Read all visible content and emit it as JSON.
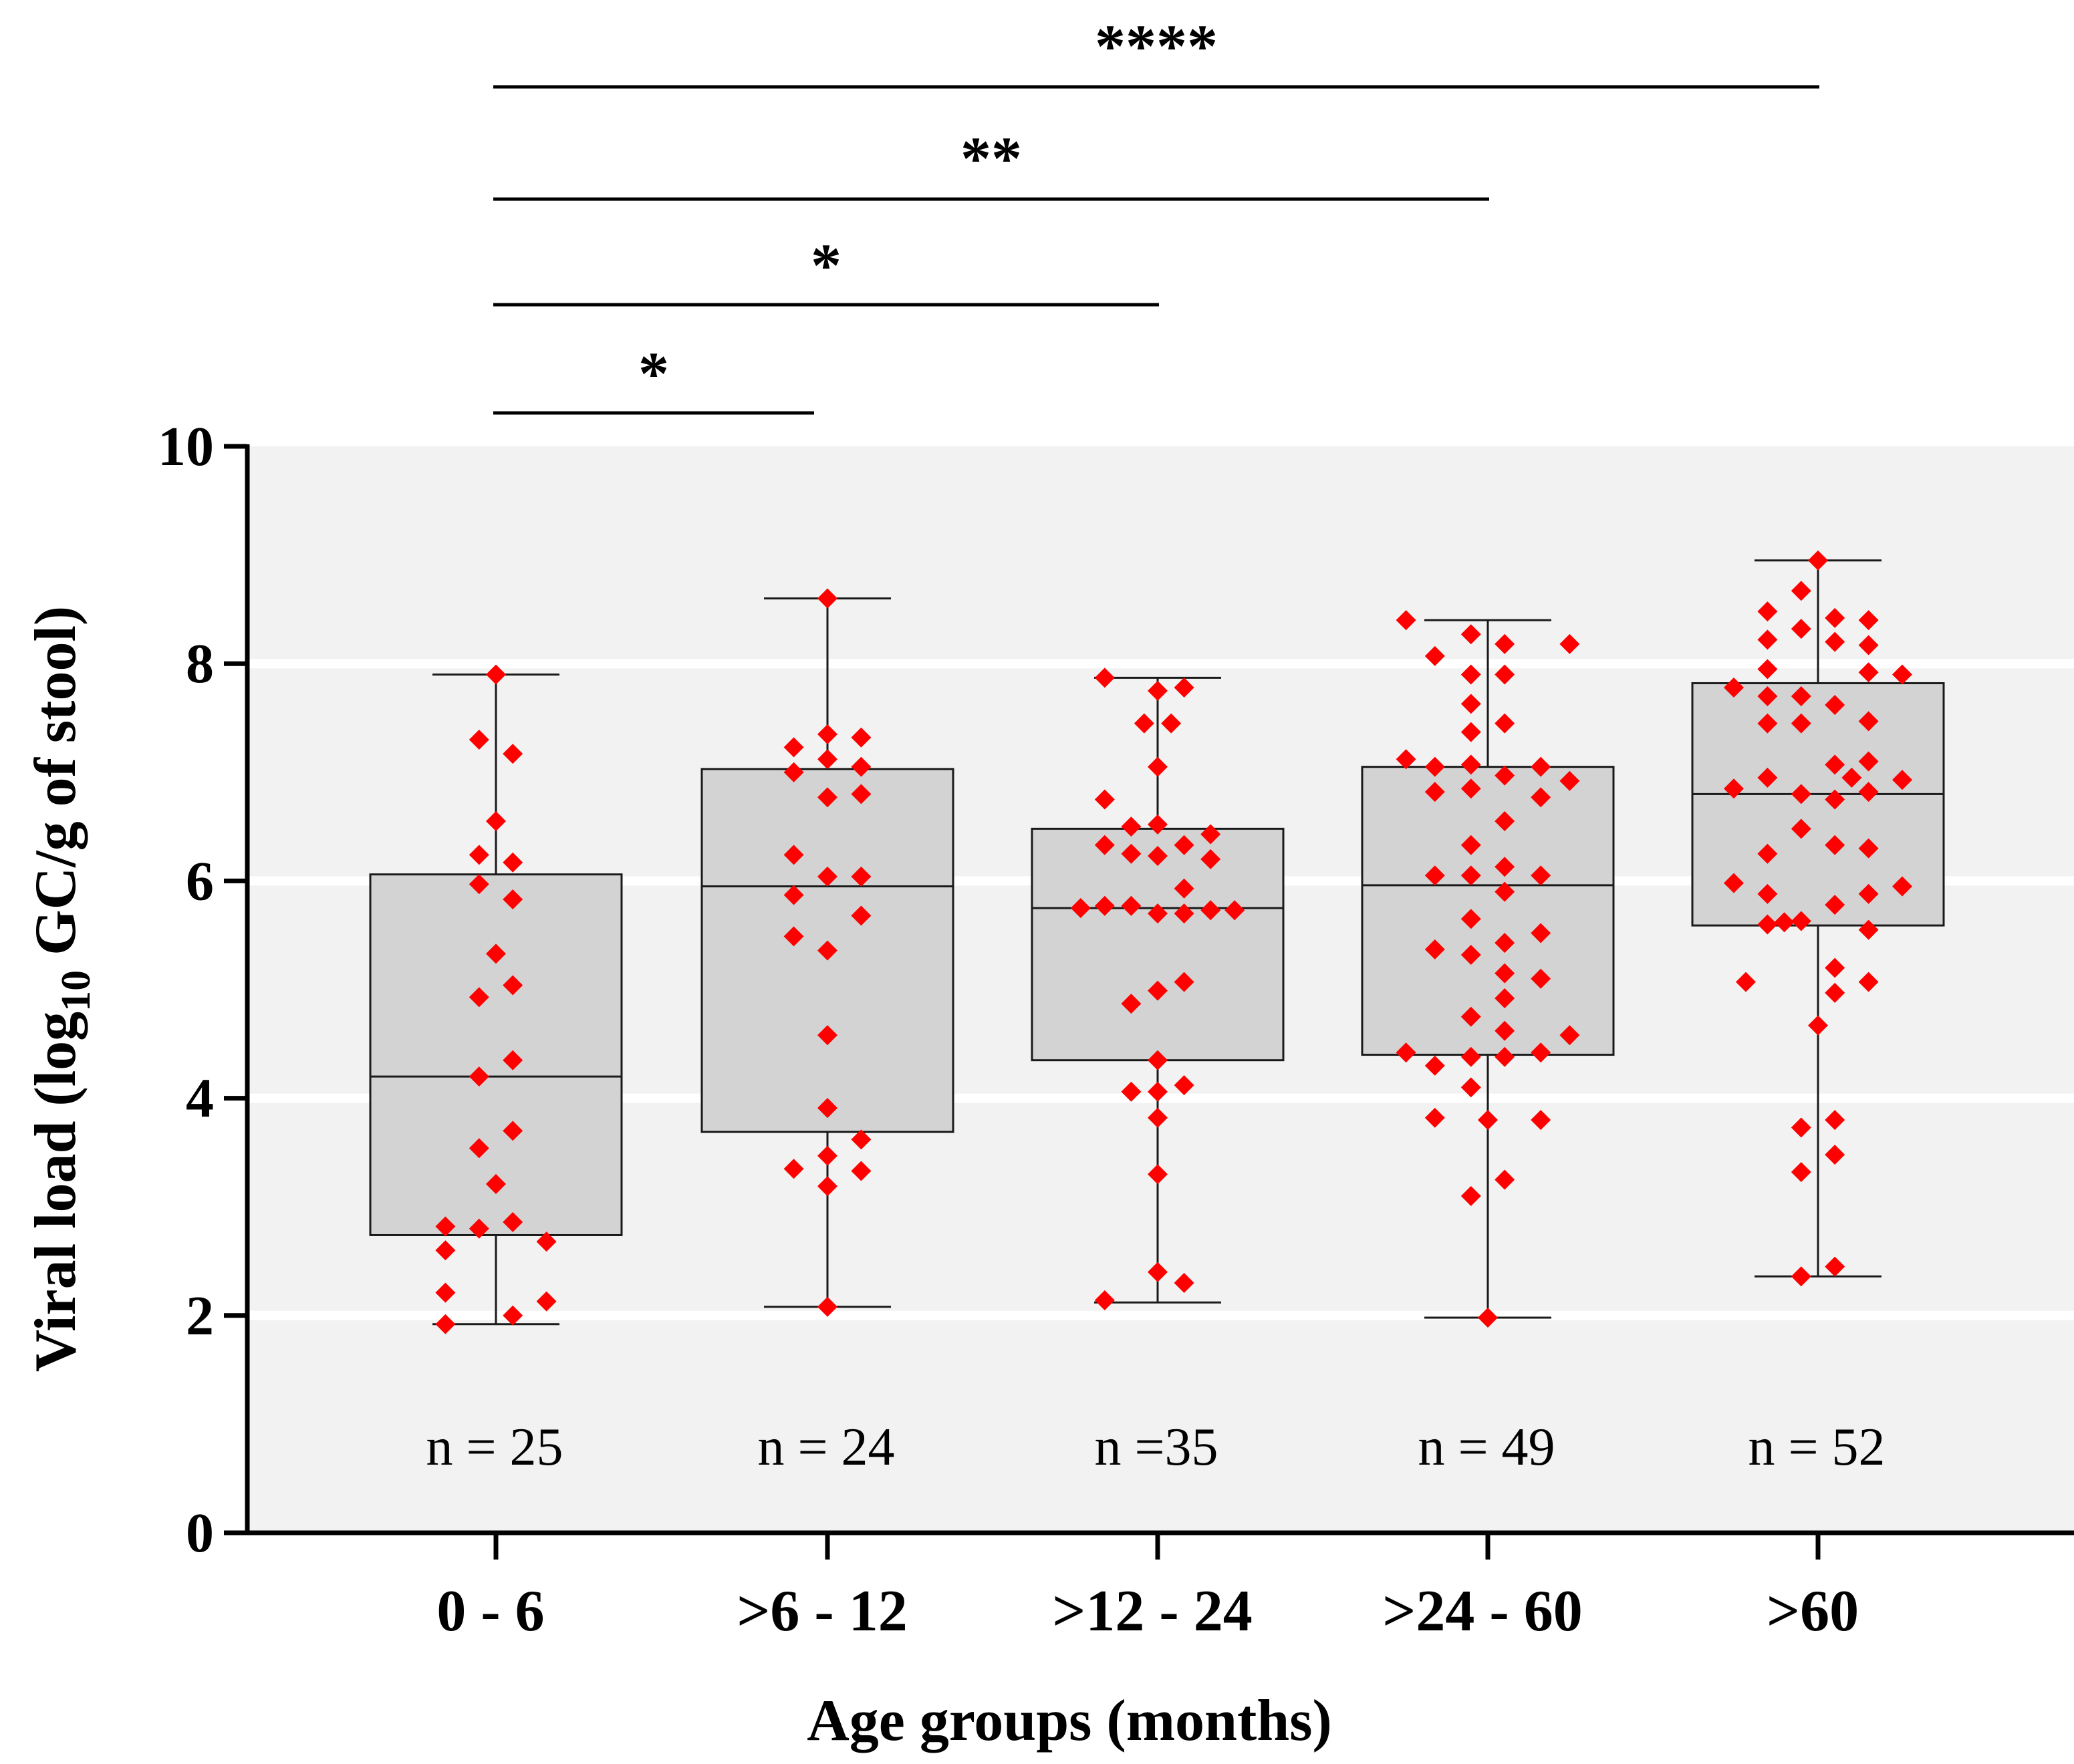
{
  "chart_data": {
    "type": "box",
    "title": "",
    "xlabel": "Age groups  (months)",
    "ylabel": {
      "prefix": "Viral load (log",
      "subscript": "10",
      "suffix": " GC/g of stool)"
    },
    "ylim": [
      0,
      10
    ],
    "yticks": [
      "0",
      "2",
      "4",
      "6",
      "8",
      "10"
    ],
    "grid": "horizontal at 2, 4, 6, 8",
    "categories": [
      "0 - 6",
      ">6 - 12",
      ">12 - 24",
      ">24 - 60",
      ">60"
    ],
    "n_labels": [
      "n = 25",
      "n = 24",
      "n =35",
      "n = 49",
      "n = 52"
    ],
    "boxes": [
      {
        "min": 1.92,
        "q1": 2.74,
        "median": 4.2,
        "q3": 6.06,
        "max": 7.9
      },
      {
        "min": 2.08,
        "q1": 3.69,
        "median": 5.95,
        "q3": 7.03,
        "max": 8.6
      },
      {
        "min": 2.12,
        "q1": 4.35,
        "median": 5.75,
        "q3": 6.48,
        "max": 7.87
      },
      {
        "min": 1.98,
        "q1": 4.4,
        "median": 5.96,
        "q3": 7.05,
        "max": 8.4
      },
      {
        "min": 2.36,
        "q1": 5.59,
        "median": 6.8,
        "q3": 7.82,
        "max": 8.95
      }
    ],
    "points": [
      [
        [
          0,
          7.9
        ],
        [
          -0.35,
          7.3
        ],
        [
          0.35,
          7.17
        ],
        [
          0,
          6.55
        ],
        [
          -0.35,
          6.24
        ],
        [
          0.35,
          6.17
        ],
        [
          -0.35,
          5.97
        ],
        [
          0.35,
          5.83
        ],
        [
          0,
          5.33
        ],
        [
          -0.35,
          4.93
        ],
        [
          0.35,
          5.04
        ],
        [
          0.35,
          4.35
        ],
        [
          -0.35,
          4.2
        ],
        [
          0.35,
          3.7
        ],
        [
          -0.35,
          3.54
        ],
        [
          0,
          3.21
        ],
        [
          -1.05,
          2.82
        ],
        [
          -0.35,
          2.8
        ],
        [
          0.35,
          2.86
        ],
        [
          -1.05,
          2.6
        ],
        [
          1.05,
          2.68
        ],
        [
          -1.05,
          2.21
        ],
        [
          1.05,
          2.13
        ],
        [
          0.35,
          2.0
        ],
        [
          -1.05,
          1.92
        ]
      ],
      [
        [
          0,
          8.6
        ],
        [
          0,
          7.35
        ],
        [
          -0.7,
          7.23
        ],
        [
          0.7,
          7.32
        ],
        [
          0,
          7.12
        ],
        [
          -0.7,
          7.0
        ],
        [
          0.7,
          7.05
        ],
        [
          0,
          6.77
        ],
        [
          0.7,
          6.8
        ],
        [
          -0.7,
          6.24
        ],
        [
          -0.7,
          5.87
        ],
        [
          0,
          6.04
        ],
        [
          0.7,
          6.04
        ],
        [
          0.7,
          5.68
        ],
        [
          -0.7,
          5.49
        ],
        [
          0,
          5.36
        ],
        [
          0,
          4.58
        ],
        [
          0,
          3.91
        ],
        [
          0.7,
          3.62
        ],
        [
          0,
          3.47
        ],
        [
          -0.7,
          3.35
        ],
        [
          0.7,
          3.33
        ],
        [
          0,
          3.19
        ],
        [
          0,
          2.08
        ]
      ],
      [
        [
          -1.1,
          7.87
        ],
        [
          0,
          7.75
        ],
        [
          0.55,
          7.78
        ],
        [
          -0.28,
          7.45
        ],
        [
          0.28,
          7.45
        ],
        [
          0,
          7.05
        ],
        [
          -1.1,
          6.75
        ],
        [
          -0.55,
          6.5
        ],
        [
          0,
          6.52
        ],
        [
          1.1,
          6.43
        ],
        [
          -1.1,
          6.33
        ],
        [
          0,
          6.23
        ],
        [
          -0.55,
          6.25
        ],
        [
          0.55,
          6.33
        ],
        [
          1.1,
          6.2
        ],
        [
          0.55,
          5.93
        ],
        [
          -1.6,
          5.75
        ],
        [
          -1.1,
          5.77
        ],
        [
          -0.55,
          5.77
        ],
        [
          0,
          5.7
        ],
        [
          0.55,
          5.7
        ],
        [
          1.1,
          5.73
        ],
        [
          1.6,
          5.73
        ],
        [
          -0.55,
          4.87
        ],
        [
          0,
          4.99
        ],
        [
          0.55,
          5.07
        ],
        [
          0,
          4.35
        ],
        [
          -0.55,
          4.06
        ],
        [
          0,
          4.06
        ],
        [
          0.55,
          4.12
        ],
        [
          0,
          3.82
        ],
        [
          0,
          3.3
        ],
        [
          0,
          2.4
        ],
        [
          0.55,
          2.3
        ],
        [
          -1.1,
          2.14
        ]
      ],
      [
        [
          -1.7,
          8.4
        ],
        [
          -0.35,
          8.27
        ],
        [
          0.35,
          8.18
        ],
        [
          1.7,
          8.18
        ],
        [
          -1.1,
          8.07
        ],
        [
          -0.35,
          7.9
        ],
        [
          0.35,
          7.9
        ],
        [
          -0.35,
          7.63
        ],
        [
          0.35,
          7.45
        ],
        [
          -0.35,
          7.37
        ],
        [
          -1.7,
          7.12
        ],
        [
          -1.1,
          7.05
        ],
        [
          -0.35,
          7.07
        ],
        [
          0.35,
          6.97
        ],
        [
          1.1,
          7.05
        ],
        [
          1.7,
          6.92
        ],
        [
          -1.1,
          6.82
        ],
        [
          -0.35,
          6.85
        ],
        [
          1.1,
          6.77
        ],
        [
          0.35,
          6.55
        ],
        [
          -0.35,
          6.33
        ],
        [
          0.35,
          6.13
        ],
        [
          -1.1,
          6.05
        ],
        [
          -0.35,
          6.05
        ],
        [
          1.1,
          6.05
        ],
        [
          0.35,
          5.9
        ],
        [
          -0.35,
          5.65
        ],
        [
          1.1,
          5.52
        ],
        [
          0.35,
          5.43
        ],
        [
          -1.1,
          5.37
        ],
        [
          -0.35,
          5.32
        ],
        [
          0.35,
          5.15
        ],
        [
          1.1,
          5.1
        ],
        [
          0.35,
          4.92
        ],
        [
          -0.35,
          4.75
        ],
        [
          0.35,
          4.62
        ],
        [
          1.7,
          4.58
        ],
        [
          -1.7,
          4.42
        ],
        [
          -0.35,
          4.38
        ],
        [
          0.35,
          4.38
        ],
        [
          1.1,
          4.42
        ],
        [
          -1.1,
          4.3
        ],
        [
          -0.35,
          4.1
        ],
        [
          -1.1,
          3.82
        ],
        [
          0,
          3.8
        ],
        [
          1.1,
          3.8
        ],
        [
          0.35,
          3.25
        ],
        [
          -0.35,
          3.1
        ],
        [
          0,
          1.98
        ]
      ],
      [
        [
          0,
          8.95
        ],
        [
          -0.35,
          8.67
        ],
        [
          -1.05,
          8.48
        ],
        [
          0.35,
          8.42
        ],
        [
          1.05,
          8.4
        ],
        [
          -0.35,
          8.32
        ],
        [
          -1.05,
          8.22
        ],
        [
          0.35,
          8.2
        ],
        [
          1.05,
          8.17
        ],
        [
          -1.05,
          7.95
        ],
        [
          1.05,
          7.92
        ],
        [
          1.75,
          7.9
        ],
        [
          -1.75,
          7.78
        ],
        [
          -1.05,
          7.7
        ],
        [
          -0.35,
          7.7
        ],
        [
          0.35,
          7.62
        ],
        [
          -1.05,
          7.45
        ],
        [
          -0.35,
          7.45
        ],
        [
          1.05,
          7.47
        ],
        [
          0.35,
          7.07
        ],
        [
          1.05,
          7.1
        ],
        [
          -1.05,
          6.95
        ],
        [
          1.75,
          6.93
        ],
        [
          -1.75,
          6.85
        ],
        [
          -0.35,
          6.8
        ],
        [
          0.35,
          6.75
        ],
        [
          1.05,
          6.82
        ],
        [
          -0.35,
          6.48
        ],
        [
          0.35,
          6.33
        ],
        [
          1.05,
          6.3
        ],
        [
          -1.05,
          6.25
        ],
        [
          -1.75,
          5.98
        ],
        [
          1.75,
          5.95
        ],
        [
          -1.05,
          5.88
        ],
        [
          1.05,
          5.88
        ],
        [
          0.35,
          5.78
        ],
        [
          -0.35,
          5.63
        ],
        [
          -1.05,
          5.6
        ],
        [
          1.05,
          5.55
        ],
        [
          0.35,
          5.2
        ],
        [
          -1.5,
          5.07
        ],
        [
          1.05,
          5.07
        ],
        [
          0.35,
          4.97
        ],
        [
          0,
          4.67
        ],
        [
          0.35,
          3.8
        ],
        [
          -0.35,
          3.73
        ],
        [
          0.35,
          3.48
        ],
        [
          -0.35,
          3.32
        ],
        [
          0.35,
          2.45
        ],
        [
          -0.35,
          2.36
        ],
        [
          -0.7,
          5.62
        ],
        [
          0.7,
          6.95
        ]
      ]
    ],
    "significance": [
      {
        "label": "****",
        "from": 0,
        "to": 4
      },
      {
        "label": "**",
        "from": 0,
        "to": 3
      },
      {
        "label": "*",
        "from": 0,
        "to": 2
      },
      {
        "label": "*",
        "from": 0,
        "to": 1
      }
    ],
    "colors": {
      "point": "#ff0000",
      "box_fill": "#d3d3d3",
      "box_stroke": "#1a1a1a",
      "plot_background": "#f2f2f2",
      "grid": "#ffffff",
      "axis": "#000000"
    }
  }
}
